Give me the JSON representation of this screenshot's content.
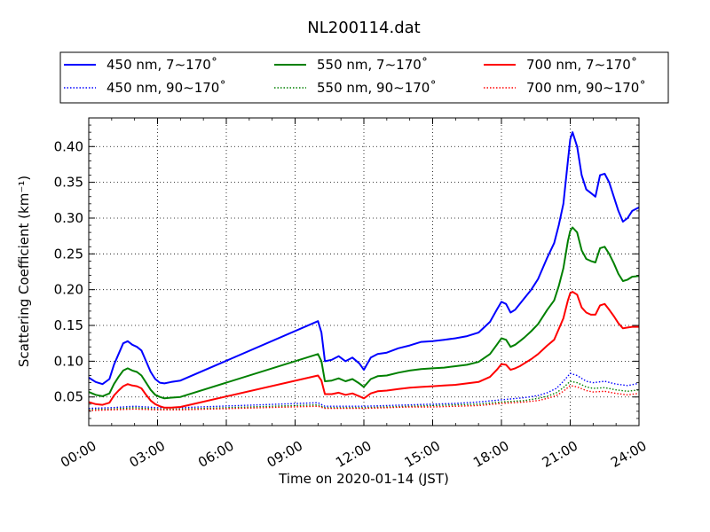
{
  "chart_data": {
    "type": "line",
    "title": "NL200114.dat",
    "xlabel": "Time on 2020-01-14 (JST)",
    "ylabel": "Scattering Coefficient (km⁻¹)",
    "x_unit": "hours",
    "xlim": [
      0,
      24
    ],
    "ylim": [
      0.01,
      0.44
    ],
    "x_ticks": [
      0,
      3,
      6,
      9,
      12,
      15,
      18,
      21,
      24
    ],
    "x_tick_labels": [
      "00:00",
      "03:00",
      "06:00",
      "09:00",
      "12:00",
      "15:00",
      "18:00",
      "21:00",
      "24:00"
    ],
    "y_ticks": [
      0.05,
      0.1,
      0.15,
      0.2,
      0.25,
      0.3,
      0.35,
      0.4
    ],
    "y_tick_labels": [
      "0.05",
      "0.10",
      "0.15",
      "0.20",
      "0.25",
      "0.30",
      "0.35",
      "0.40"
    ],
    "grid": true,
    "legend": "top, three columns, above plot",
    "series": [
      {
        "name": "450 nm, 7∼170˚",
        "color": "#0000ff",
        "style": "solid",
        "x": [
          0,
          0.3,
          0.6,
          0.9,
          1.1,
          1.3,
          1.5,
          1.7,
          1.9,
          2.1,
          2.3,
          2.5,
          2.7,
          2.9,
          3.1,
          3.3,
          3.6,
          4.0,
          10.0,
          10.15,
          10.3,
          10.6,
          10.9,
          11.2,
          11.5,
          11.8,
          12.0,
          12.3,
          12.6,
          13.0,
          13.5,
          14.0,
          14.5,
          15.0,
          15.5,
          16.0,
          16.5,
          17.0,
          17.5,
          17.8,
          18.0,
          18.2,
          18.4,
          18.6,
          18.8,
          19.0,
          19.3,
          19.6,
          20.0,
          20.3,
          20.5,
          20.7,
          20.9,
          21.0,
          21.1,
          21.3,
          21.5,
          21.7,
          21.9,
          22.1,
          22.3,
          22.5,
          22.7,
          22.9,
          23.1,
          23.3,
          23.5,
          23.7,
          24.0
        ],
        "y": [
          0.077,
          0.071,
          0.068,
          0.075,
          0.095,
          0.11,
          0.125,
          0.128,
          0.123,
          0.12,
          0.115,
          0.1,
          0.085,
          0.075,
          0.07,
          0.069,
          0.071,
          0.073,
          0.156,
          0.14,
          0.1,
          0.102,
          0.107,
          0.1,
          0.105,
          0.097,
          0.088,
          0.105,
          0.11,
          0.112,
          0.118,
          0.122,
          0.127,
          0.128,
          0.13,
          0.132,
          0.135,
          0.14,
          0.155,
          0.172,
          0.183,
          0.18,
          0.168,
          0.172,
          0.18,
          0.188,
          0.2,
          0.215,
          0.245,
          0.265,
          0.29,
          0.32,
          0.38,
          0.41,
          0.42,
          0.4,
          0.36,
          0.34,
          0.335,
          0.33,
          0.36,
          0.362,
          0.35,
          0.33,
          0.31,
          0.295,
          0.3,
          0.31,
          0.315
        ]
      },
      {
        "name": "550 nm, 7∼170˚",
        "color": "#008000",
        "style": "solid",
        "x": [
          0,
          0.3,
          0.6,
          0.9,
          1.1,
          1.3,
          1.5,
          1.7,
          1.9,
          2.1,
          2.3,
          2.5,
          2.7,
          2.9,
          3.1,
          3.3,
          3.6,
          4.0,
          10.0,
          10.15,
          10.3,
          10.6,
          10.9,
          11.2,
          11.5,
          11.8,
          12.0,
          12.3,
          12.6,
          13.0,
          13.5,
          14.0,
          14.5,
          15.0,
          15.5,
          16.0,
          16.5,
          17.0,
          17.5,
          17.8,
          18.0,
          18.2,
          18.4,
          18.6,
          18.8,
          19.0,
          19.3,
          19.6,
          20.0,
          20.3,
          20.5,
          20.7,
          20.9,
          21.0,
          21.1,
          21.3,
          21.5,
          21.7,
          21.9,
          22.1,
          22.3,
          22.5,
          22.7,
          22.9,
          23.1,
          23.3,
          23.5,
          23.7,
          24.0
        ],
        "y": [
          0.057,
          0.053,
          0.051,
          0.055,
          0.068,
          0.078,
          0.087,
          0.09,
          0.087,
          0.085,
          0.08,
          0.07,
          0.06,
          0.053,
          0.05,
          0.048,
          0.049,
          0.05,
          0.11,
          0.1,
          0.072,
          0.073,
          0.076,
          0.072,
          0.075,
          0.069,
          0.064,
          0.075,
          0.079,
          0.08,
          0.084,
          0.087,
          0.089,
          0.09,
          0.091,
          0.093,
          0.095,
          0.099,
          0.11,
          0.123,
          0.132,
          0.13,
          0.12,
          0.123,
          0.128,
          0.133,
          0.142,
          0.152,
          0.172,
          0.185,
          0.205,
          0.23,
          0.268,
          0.282,
          0.287,
          0.28,
          0.255,
          0.243,
          0.24,
          0.238,
          0.258,
          0.26,
          0.25,
          0.237,
          0.222,
          0.212,
          0.214,
          0.218,
          0.219
        ]
      },
      {
        "name": "700 nm, 7∼170˚",
        "color": "#ff0000",
        "style": "solid",
        "x": [
          0,
          0.3,
          0.6,
          0.9,
          1.1,
          1.3,
          1.5,
          1.7,
          1.9,
          2.1,
          2.3,
          2.5,
          2.7,
          2.9,
          3.1,
          3.3,
          3.6,
          4.0,
          10.0,
          10.15,
          10.3,
          10.6,
          10.9,
          11.2,
          11.5,
          11.8,
          12.0,
          12.3,
          12.6,
          13.0,
          13.5,
          14.0,
          14.5,
          15.0,
          15.5,
          16.0,
          16.5,
          17.0,
          17.5,
          17.8,
          18.0,
          18.2,
          18.4,
          18.6,
          18.8,
          19.0,
          19.3,
          19.6,
          20.0,
          20.3,
          20.5,
          20.7,
          20.9,
          21.0,
          21.1,
          21.3,
          21.5,
          21.7,
          21.9,
          22.1,
          22.3,
          22.5,
          22.7,
          22.9,
          23.1,
          23.3,
          23.5,
          23.7,
          24.0
        ],
        "y": [
          0.043,
          0.04,
          0.039,
          0.042,
          0.052,
          0.059,
          0.065,
          0.068,
          0.066,
          0.065,
          0.062,
          0.053,
          0.045,
          0.04,
          0.037,
          0.035,
          0.035,
          0.036,
          0.08,
          0.073,
          0.054,
          0.054,
          0.056,
          0.053,
          0.055,
          0.051,
          0.048,
          0.055,
          0.058,
          0.059,
          0.061,
          0.063,
          0.064,
          0.065,
          0.066,
          0.067,
          0.069,
          0.071,
          0.078,
          0.088,
          0.096,
          0.095,
          0.088,
          0.09,
          0.093,
          0.097,
          0.103,
          0.11,
          0.122,
          0.13,
          0.145,
          0.16,
          0.185,
          0.195,
          0.197,
          0.193,
          0.175,
          0.168,
          0.165,
          0.165,
          0.178,
          0.18,
          0.172,
          0.163,
          0.153,
          0.146,
          0.147,
          0.148,
          0.148
        ]
      },
      {
        "name": "450 nm, 90∼170˚",
        "color": "#0000ff",
        "style": "dotted",
        "x": [
          0,
          1,
          2,
          3,
          4,
          10,
          10.3,
          11,
          12,
          13,
          14,
          15,
          16,
          17,
          18,
          19,
          19.6,
          20,
          20.4,
          20.7,
          21.0,
          21.3,
          21.7,
          22.0,
          22.5,
          23.0,
          23.5,
          24.0
        ],
        "y": [
          0.034,
          0.035,
          0.037,
          0.035,
          0.035,
          0.042,
          0.037,
          0.037,
          0.037,
          0.038,
          0.039,
          0.04,
          0.041,
          0.043,
          0.046,
          0.049,
          0.052,
          0.056,
          0.062,
          0.072,
          0.083,
          0.08,
          0.072,
          0.07,
          0.072,
          0.068,
          0.066,
          0.069
        ]
      },
      {
        "name": "550 nm, 90∼170˚",
        "color": "#008000",
        "style": "dotted",
        "x": [
          0,
          1,
          2,
          3,
          4,
          10,
          10.3,
          11,
          12,
          13,
          14,
          15,
          16,
          17,
          18,
          19,
          19.6,
          20,
          20.4,
          20.7,
          21.0,
          21.3,
          21.7,
          22.0,
          22.5,
          23.0,
          23.5,
          24.0
        ],
        "y": [
          0.032,
          0.033,
          0.035,
          0.033,
          0.033,
          0.039,
          0.035,
          0.035,
          0.035,
          0.036,
          0.037,
          0.038,
          0.039,
          0.04,
          0.043,
          0.045,
          0.048,
          0.051,
          0.056,
          0.063,
          0.072,
          0.07,
          0.064,
          0.062,
          0.063,
          0.06,
          0.058,
          0.06
        ]
      },
      {
        "name": "700 nm, 90∼170˚",
        "color": "#ff0000",
        "style": "dotted",
        "x": [
          0,
          1,
          2,
          3,
          4,
          10,
          10.3,
          11,
          12,
          13,
          14,
          15,
          16,
          17,
          18,
          19,
          19.6,
          20,
          20.4,
          20.7,
          21.0,
          21.3,
          21.7,
          22.0,
          22.5,
          23.0,
          23.5,
          24.0
        ],
        "y": [
          0.031,
          0.032,
          0.033,
          0.032,
          0.032,
          0.037,
          0.034,
          0.034,
          0.034,
          0.035,
          0.036,
          0.036,
          0.037,
          0.038,
          0.041,
          0.043,
          0.045,
          0.048,
          0.052,
          0.058,
          0.066,
          0.064,
          0.059,
          0.057,
          0.058,
          0.055,
          0.053,
          0.055
        ]
      }
    ]
  }
}
